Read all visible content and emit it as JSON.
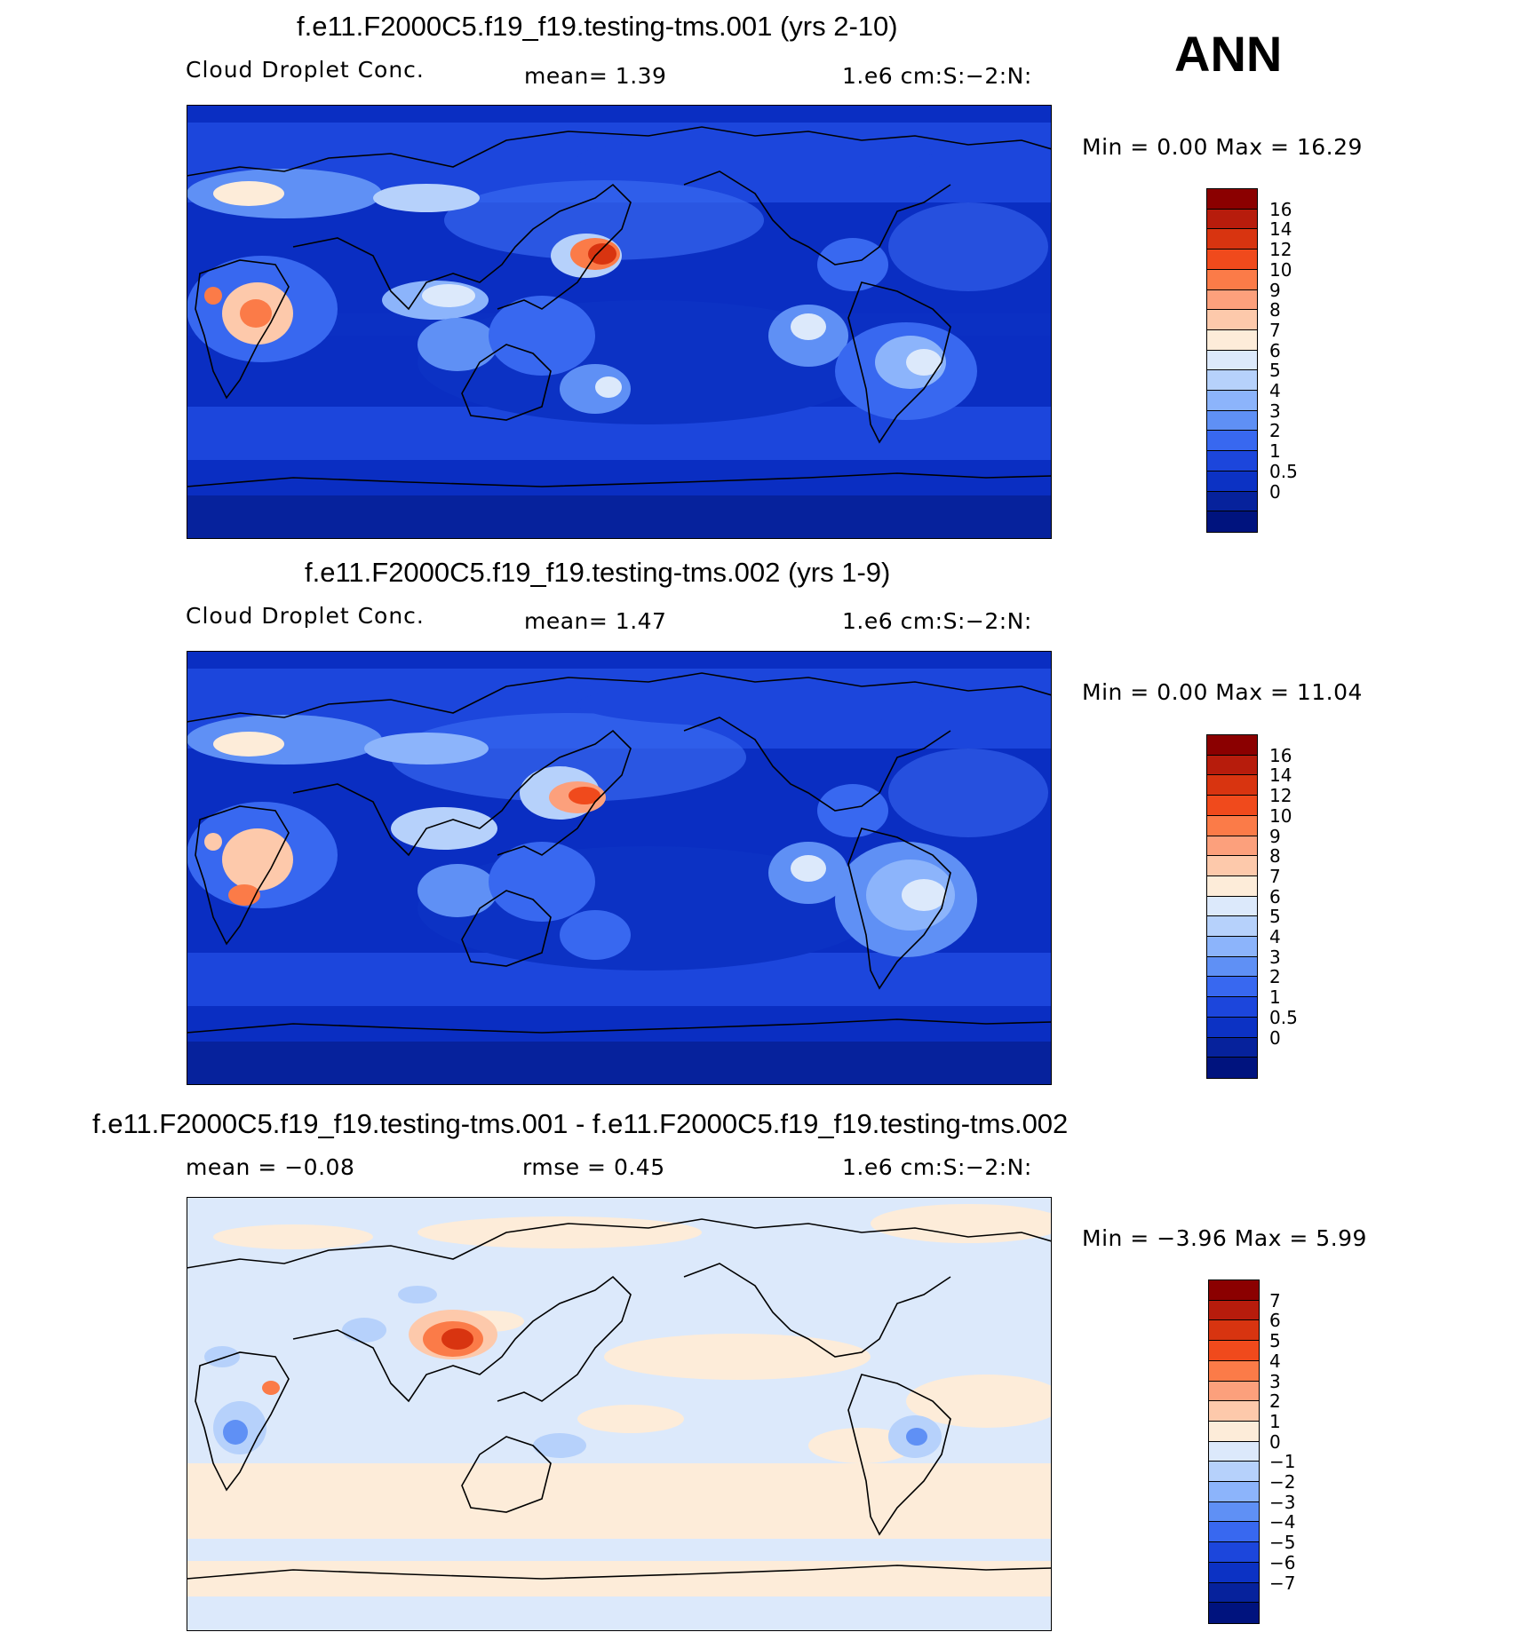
{
  "season": "ANN",
  "panels": [
    {
      "title": "f.e11.F2000C5.f19_f19.testing-tms.001 (yrs 2-10)",
      "sub_left": "Cloud Droplet Conc.",
      "sub_mid": "mean=    1.39",
      "sub_right": "1.e6 cm:S:−2:N:",
      "minmax": "Min =    0.00 Max =   16.29",
      "colorbar": {
        "labels": [
          "16",
          "14",
          "12",
          "10",
          "9",
          "8",
          "7",
          "6",
          "5",
          "4",
          "3",
          "2",
          "1",
          "0.5",
          "0"
        ],
        "colors": [
          "#8b0000",
          "#b71c0c",
          "#d83410",
          "#f04a1c",
          "#fb7b48",
          "#fca07c",
          "#fdc9ab",
          "#fdecd9",
          "#dce9fb",
          "#b6d1fb",
          "#8cb4fb",
          "#5f90f5",
          "#3868f0",
          "#1c46dc",
          "#0c32c4",
          "#06229c",
          "#00137e"
        ]
      }
    },
    {
      "title": "f.e11.F2000C5.f19_f19.testing-tms.002 (yrs 1-9)",
      "sub_left": "Cloud Droplet Conc.",
      "sub_mid": "mean=    1.47",
      "sub_right": "1.e6 cm:S:−2:N:",
      "minmax": "Min =    0.00 Max =   11.04",
      "colorbar": {
        "labels": [
          "16",
          "14",
          "12",
          "10",
          "9",
          "8",
          "7",
          "6",
          "5",
          "4",
          "3",
          "2",
          "1",
          "0.5",
          "0"
        ],
        "colors": [
          "#8b0000",
          "#b71c0c",
          "#d83410",
          "#f04a1c",
          "#fb7b48",
          "#fca07c",
          "#fdc9ab",
          "#fdecd9",
          "#dce9fb",
          "#b6d1fb",
          "#8cb4fb",
          "#5f90f5",
          "#3868f0",
          "#1c46dc",
          "#0c32c4",
          "#06229c",
          "#00137e"
        ]
      }
    },
    {
      "title": "f.e11.F2000C5.f19_f19.testing-tms.001 - f.e11.F2000C5.f19_f19.testing-tms.002",
      "sub_left": "mean =   −0.08",
      "sub_mid": "rmse =    0.45",
      "sub_right": "1.e6 cm:S:−2:N:",
      "minmax": "Min =  −3.96 Max =    5.99",
      "colorbar": {
        "labels": [
          "7",
          "6",
          "5",
          "4",
          "3",
          "2",
          "1",
          "0",
          "−1",
          "−2",
          "−3",
          "−4",
          "−5",
          "−6",
          "−7"
        ],
        "colors": [
          "#8b0000",
          "#b71c0c",
          "#d83410",
          "#f04a1c",
          "#fb7b48",
          "#fca07c",
          "#fdc9ab",
          "#fdecd9",
          "#dce9fb",
          "#b6d1fb",
          "#8cb4fb",
          "#5f90f5",
          "#3868f0",
          "#1c46dc",
          "#0c32c4",
          "#06229c",
          "#00137e"
        ]
      }
    }
  ]
}
